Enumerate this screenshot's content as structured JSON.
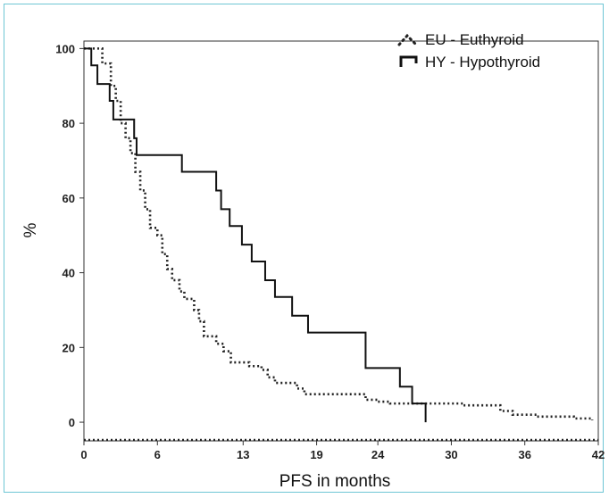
{
  "chart_data": {
    "type": "line",
    "title": "",
    "xlabel": "PFS in months",
    "ylabel": "%",
    "xlim": [
      0,
      42
    ],
    "ylim": [
      -5,
      102
    ],
    "x_ticks": [
      0,
      6,
      13,
      19,
      24,
      30,
      36,
      42
    ],
    "y_ticks": [
      0,
      20,
      40,
      60,
      80,
      100
    ],
    "grid": false,
    "legend_position": "top-right",
    "series": [
      {
        "name": "EU - Euthyroid",
        "style": "dotted",
        "color": "#222222",
        "points": [
          [
            0,
            100
          ],
          [
            1.5,
            96
          ],
          [
            2.2,
            90
          ],
          [
            2.6,
            86
          ],
          [
            3.0,
            80
          ],
          [
            3.4,
            76
          ],
          [
            3.8,
            72
          ],
          [
            4.2,
            67
          ],
          [
            4.6,
            62
          ],
          [
            5.0,
            57
          ],
          [
            5.4,
            52
          ],
          [
            6.0,
            50
          ],
          [
            6.4,
            45
          ],
          [
            6.8,
            41
          ],
          [
            7.2,
            38
          ],
          [
            7.8,
            35
          ],
          [
            8.2,
            33
          ],
          [
            9.0,
            30
          ],
          [
            9.4,
            27
          ],
          [
            9.8,
            23
          ],
          [
            10.8,
            21
          ],
          [
            11.4,
            19
          ],
          [
            12.0,
            16
          ],
          [
            13.5,
            15
          ],
          [
            14.5,
            14
          ],
          [
            15.0,
            12
          ],
          [
            15.6,
            10.5
          ],
          [
            17.4,
            9
          ],
          [
            18.0,
            7.5
          ],
          [
            23.0,
            6
          ],
          [
            24.0,
            5.5
          ],
          [
            25.0,
            5
          ],
          [
            31.0,
            4.5
          ],
          [
            34.0,
            3
          ],
          [
            35.0,
            2
          ],
          [
            37.0,
            1.5
          ],
          [
            40.0,
            1
          ],
          [
            41.5,
            0.5
          ]
        ]
      },
      {
        "name": "HY - Hypothyroid",
        "style": "solid",
        "color": "#111111",
        "points": [
          [
            0,
            100
          ],
          [
            0.6,
            100
          ],
          [
            0.6,
            95.5
          ],
          [
            1.1,
            95.5
          ],
          [
            1.1,
            90.5
          ],
          [
            2.1,
            90.5
          ],
          [
            2.1,
            86
          ],
          [
            2.4,
            86
          ],
          [
            2.4,
            81
          ],
          [
            4.1,
            81
          ],
          [
            4.1,
            76
          ],
          [
            4.3,
            76
          ],
          [
            4.3,
            71.5
          ],
          [
            8.0,
            71.5
          ],
          [
            8.0,
            67
          ],
          [
            10.8,
            67
          ],
          [
            10.8,
            62
          ],
          [
            11.2,
            62
          ],
          [
            11.2,
            57
          ],
          [
            11.9,
            57
          ],
          [
            11.9,
            52.5
          ],
          [
            12.9,
            52.5
          ],
          [
            12.9,
            47.5
          ],
          [
            13.7,
            47.5
          ],
          [
            13.7,
            43
          ],
          [
            14.8,
            43
          ],
          [
            14.8,
            38
          ],
          [
            15.6,
            38
          ],
          [
            15.6,
            33.5
          ],
          [
            17.0,
            33.5
          ],
          [
            17.0,
            28.5
          ],
          [
            18.3,
            28.5
          ],
          [
            18.3,
            24
          ],
          [
            23.0,
            24
          ],
          [
            23.0,
            14.5
          ],
          [
            25.8,
            14.5
          ],
          [
            25.8,
            9.5
          ],
          [
            26.8,
            9.5
          ],
          [
            26.8,
            5
          ],
          [
            27.9,
            5
          ],
          [
            27.9,
            0
          ]
        ]
      }
    ]
  }
}
